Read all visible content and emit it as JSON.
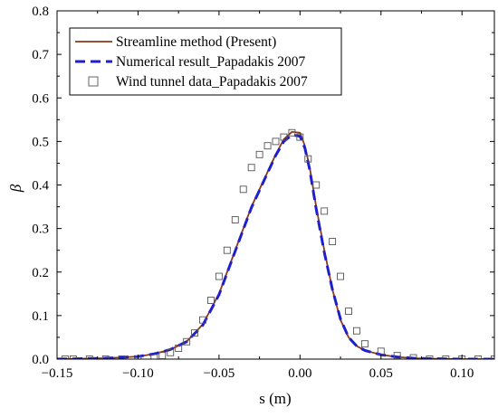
{
  "chart_data": {
    "type": "line",
    "xlabel": "s (m)",
    "ylabel": "β",
    "xlim": [
      -0.15,
      0.12
    ],
    "ylim": [
      0,
      0.8
    ],
    "x_ticks": [
      -0.15,
      -0.1,
      -0.05,
      0.0,
      0.05,
      0.1
    ],
    "x_tick_labels": [
      "−0.15",
      "−0.10",
      "−0.05",
      "0.00",
      "0.05",
      "0.10"
    ],
    "y_ticks": [
      0,
      0.1,
      0.2,
      0.3,
      0.4,
      0.5,
      0.6,
      0.7,
      0.8
    ],
    "y_tick_labels": [
      "0.0",
      "0.1",
      "0.2",
      "0.3",
      "0.4",
      "0.5",
      "0.6",
      "0.7",
      "0.8"
    ],
    "grid": false,
    "legend_position": "top-left",
    "series": [
      {
        "name": "Streamline method (Present)",
        "style": "solid-line",
        "color": "#8B3A1A",
        "x": [
          -0.15,
          -0.12,
          -0.1,
          -0.09,
          -0.08,
          -0.07,
          -0.06,
          -0.05,
          -0.04,
          -0.03,
          -0.02,
          -0.015,
          -0.01,
          -0.005,
          0.0,
          0.003,
          0.006,
          0.01,
          0.015,
          0.02,
          0.025,
          0.03,
          0.035,
          0.04,
          0.05,
          0.06,
          0.07,
          0.08,
          0.1,
          0.12
        ],
        "y": [
          0.0,
          0.002,
          0.006,
          0.012,
          0.022,
          0.04,
          0.08,
          0.15,
          0.25,
          0.35,
          0.43,
          0.47,
          0.505,
          0.522,
          0.52,
          0.49,
          0.44,
          0.35,
          0.25,
          0.16,
          0.09,
          0.05,
          0.03,
          0.02,
          0.01,
          0.005,
          0.002,
          0.001,
          0.0,
          0.0
        ]
      },
      {
        "name": "Numerical result_Papadakis 2007",
        "style": "dashed-line",
        "color": "#1F1FCC",
        "x": [
          -0.15,
          -0.12,
          -0.1,
          -0.09,
          -0.08,
          -0.07,
          -0.06,
          -0.05,
          -0.04,
          -0.03,
          -0.02,
          -0.015,
          -0.01,
          -0.005,
          0.0,
          0.003,
          0.006,
          0.01,
          0.015,
          0.02,
          0.025,
          0.03,
          0.035,
          0.04,
          0.05,
          0.06,
          0.07,
          0.08,
          0.1,
          0.12
        ],
        "y": [
          0.0,
          0.002,
          0.006,
          0.012,
          0.022,
          0.04,
          0.078,
          0.148,
          0.248,
          0.348,
          0.428,
          0.468,
          0.5,
          0.515,
          0.512,
          0.485,
          0.435,
          0.345,
          0.245,
          0.16,
          0.092,
          0.05,
          0.03,
          0.02,
          0.01,
          0.005,
          0.002,
          0.001,
          0.0,
          0.0
        ]
      },
      {
        "name": "Wind tunnel data_Papadakis 2007",
        "style": "open-square-markers",
        "color": "#555555",
        "x": [
          -0.145,
          -0.14,
          -0.13,
          -0.12,
          -0.11,
          -0.1,
          -0.09,
          -0.085,
          -0.08,
          -0.075,
          -0.07,
          -0.065,
          -0.06,
          -0.055,
          -0.05,
          -0.045,
          -0.04,
          -0.035,
          -0.03,
          -0.025,
          -0.02,
          -0.015,
          -0.01,
          -0.005,
          0.0,
          0.005,
          0.01,
          0.015,
          0.02,
          0.025,
          0.03,
          0.035,
          0.04,
          0.05,
          0.06,
          0.07,
          0.08,
          0.09,
          0.1,
          0.11,
          0.12
        ],
        "y": [
          0.0,
          0.0,
          0.0,
          0.0,
          0.0,
          0.0,
          0.003,
          0.008,
          0.015,
          0.025,
          0.04,
          0.06,
          0.09,
          0.135,
          0.19,
          0.25,
          0.32,
          0.39,
          0.44,
          0.47,
          0.49,
          0.5,
          0.51,
          0.52,
          0.51,
          0.46,
          0.4,
          0.34,
          0.27,
          0.19,
          0.11,
          0.065,
          0.035,
          0.018,
          0.008,
          0.003,
          0.0,
          0.0,
          0.0,
          0.0,
          0.0
        ]
      }
    ]
  }
}
